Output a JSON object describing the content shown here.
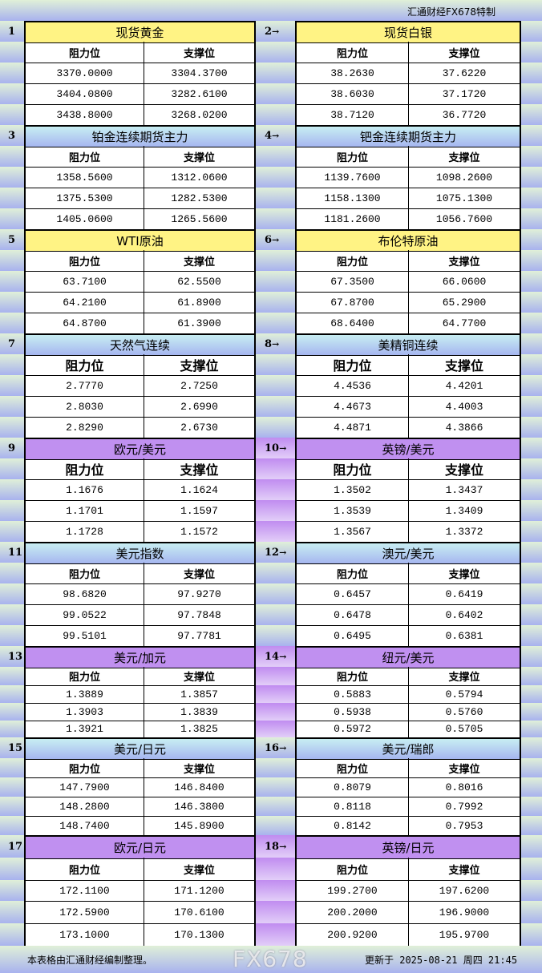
{
  "header": {
    "title": "汇通财经FX678特制"
  },
  "colors": {
    "yellow": "#fff384",
    "blue": "#b8d8f2",
    "purple": "#c090f0"
  },
  "column_labels": {
    "resistance": "阻力位",
    "support": "支撑位"
  },
  "arrow": "→",
  "sections": [
    {
      "no": "1",
      "name": "现货黄金",
      "color": "yellow",
      "rows": [
        [
          "3370.0000",
          "3304.3700"
        ],
        [
          "3404.0800",
          "3282.6100"
        ],
        [
          "3438.8000",
          "3268.0200"
        ]
      ]
    },
    {
      "no": "2",
      "name": "现货白银",
      "color": "yellow",
      "rows": [
        [
          "38.2630",
          "37.6220"
        ],
        [
          "38.6030",
          "37.1720"
        ],
        [
          "38.7120",
          "36.7720"
        ]
      ]
    },
    {
      "no": "3",
      "name": "铂金连续期货主力",
      "color": "blue",
      "rows": [
        [
          "1358.5600",
          "1312.0600"
        ],
        [
          "1375.5300",
          "1282.5300"
        ],
        [
          "1405.0600",
          "1265.5600"
        ]
      ]
    },
    {
      "no": "4",
      "name": "钯金连续期货主力",
      "color": "blue",
      "rows": [
        [
          "1139.7600",
          "1098.2600"
        ],
        [
          "1158.1300",
          "1075.1300"
        ],
        [
          "1181.2600",
          "1056.7600"
        ]
      ]
    },
    {
      "no": "5",
      "name": "WTI原油",
      "color": "yellow",
      "rows": [
        [
          "63.7100",
          "62.5500"
        ],
        [
          "64.2100",
          "61.8900"
        ],
        [
          "64.8700",
          "61.3900"
        ]
      ]
    },
    {
      "no": "6",
      "name": "布伦特原油",
      "color": "yellow",
      "rows": [
        [
          "67.3500",
          "66.0600"
        ],
        [
          "67.8700",
          "65.2900"
        ],
        [
          "68.6400",
          "64.7700"
        ]
      ]
    },
    {
      "no": "7",
      "name": "天然气连续",
      "color": "blue",
      "rows": [
        [
          "2.7770",
          "2.7250"
        ],
        [
          "2.8030",
          "2.6990"
        ],
        [
          "2.8290",
          "2.6730"
        ]
      ]
    },
    {
      "no": "8",
      "name": "美精铜连续",
      "color": "blue",
      "rows": [
        [
          "4.4536",
          "4.4201"
        ],
        [
          "4.4673",
          "4.4003"
        ],
        [
          "4.4871",
          "4.3866"
        ]
      ]
    },
    {
      "no": "9",
      "name": "欧元/美元",
      "color": "purple",
      "rows": [
        [
          "1.1676",
          "1.1624"
        ],
        [
          "1.1701",
          "1.1597"
        ],
        [
          "1.1728",
          "1.1572"
        ]
      ]
    },
    {
      "no": "10",
      "name": "英镑/美元",
      "color": "purple",
      "rows": [
        [
          "1.3502",
          "1.3437"
        ],
        [
          "1.3539",
          "1.3409"
        ],
        [
          "1.3567",
          "1.3372"
        ]
      ]
    },
    {
      "no": "11",
      "name": "美元指数",
      "color": "blue",
      "rows": [
        [
          "98.6820",
          "97.9270"
        ],
        [
          "99.0522",
          "97.7848"
        ],
        [
          "99.5101",
          "97.7781"
        ]
      ]
    },
    {
      "no": "12",
      "name": "澳元/美元",
      "color": "blue",
      "rows": [
        [
          "0.6457",
          "0.6419"
        ],
        [
          "0.6478",
          "0.6402"
        ],
        [
          "0.6495",
          "0.6381"
        ]
      ]
    },
    {
      "no": "13",
      "name": "美元/加元",
      "color": "purple",
      "rows": [
        [
          "1.3889",
          "1.3857"
        ],
        [
          "1.3903",
          "1.3839"
        ],
        [
          "1.3921",
          "1.3825"
        ]
      ]
    },
    {
      "no": "14",
      "name": "纽元/美元",
      "color": "purple",
      "rows": [
        [
          "0.5883",
          "0.5794"
        ],
        [
          "0.5938",
          "0.5760"
        ],
        [
          "0.5972",
          "0.5705"
        ]
      ]
    },
    {
      "no": "15",
      "name": "美元/日元",
      "color": "blue",
      "rows": [
        [
          "147.7900",
          "146.8400"
        ],
        [
          "148.2800",
          "146.3800"
        ],
        [
          "148.7400",
          "145.8900"
        ]
      ]
    },
    {
      "no": "16",
      "name": "美元/瑞郎",
      "color": "blue",
      "rows": [
        [
          "0.8079",
          "0.8016"
        ],
        [
          "0.8118",
          "0.7992"
        ],
        [
          "0.8142",
          "0.7953"
        ]
      ]
    },
    {
      "no": "17",
      "name": "欧元/日元",
      "color": "purple",
      "rows": [
        [
          "172.1100",
          "171.1200"
        ],
        [
          "172.5900",
          "170.6100"
        ],
        [
          "173.1000",
          "170.1300"
        ]
      ]
    },
    {
      "no": "18",
      "name": "英镑/日元",
      "color": "purple",
      "rows": [
        [
          "199.2700",
          "197.6200"
        ],
        [
          "200.2000",
          "196.9000"
        ],
        [
          "200.9200",
          "195.9700"
        ]
      ]
    }
  ],
  "footer": {
    "note": "本表格由汇通财经编制整理。",
    "updated": "更新于 2025-08-21 周四 21:45"
  },
  "watermark": "FX678"
}
